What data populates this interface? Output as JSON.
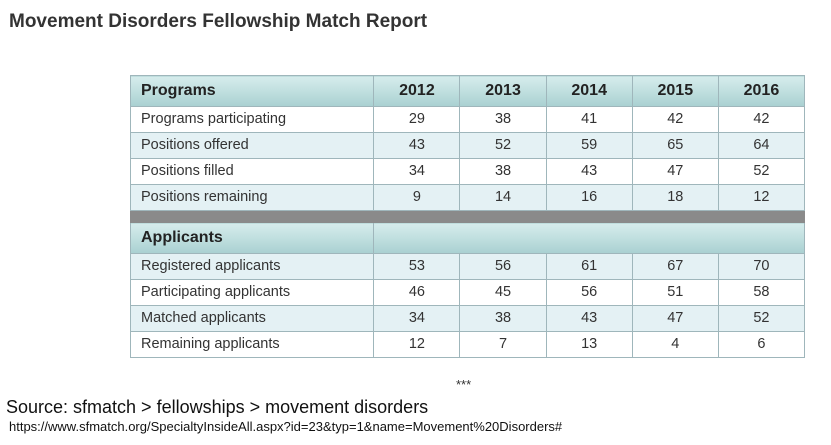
{
  "title": "Movement Disorders Fellowship Match Report",
  "programs": {
    "header": "Programs",
    "years": [
      "2012",
      "2013",
      "2014",
      "2015",
      "2016"
    ],
    "rows": [
      {
        "label": "Programs participating",
        "values": [
          "29",
          "38",
          "41",
          "42",
          "42"
        ]
      },
      {
        "label": "Positions offered",
        "values": [
          "43",
          "52",
          "59",
          "65",
          "64"
        ]
      },
      {
        "label": "Positions filled",
        "values": [
          "34",
          "38",
          "43",
          "47",
          "52"
        ]
      },
      {
        "label": "Positions remaining",
        "values": [
          "9",
          "14",
          "16",
          "18",
          "12"
        ]
      }
    ]
  },
  "applicants": {
    "header": "Applicants",
    "rows": [
      {
        "label": "Registered applicants",
        "values": [
          "53",
          "56",
          "61",
          "67",
          "70"
        ]
      },
      {
        "label": "Participating applicants",
        "values": [
          "46",
          "45",
          "56",
          "51",
          "58"
        ]
      },
      {
        "label": "Matched applicants",
        "values": [
          "34",
          "38",
          "43",
          "47",
          "52"
        ]
      },
      {
        "label": "Remaining applicants",
        "values": [
          "12",
          "7",
          "13",
          "4",
          "6"
        ]
      }
    ]
  },
  "footer": {
    "stars": "***",
    "source": "Source: sfmatch > fellowships > movement disorders",
    "url": "https://www.sfmatch.org/SpecialtyInsideAll.aspx?id=23&typ=1&name=Movement%20Disorders#"
  },
  "colors": {
    "header_gradient_top": "#d6ecec",
    "header_gradient_bottom": "#a9d0d1",
    "alt_row": "#e4f1f4",
    "separator": "#8a8a8a",
    "border": "#9fb6bb"
  }
}
